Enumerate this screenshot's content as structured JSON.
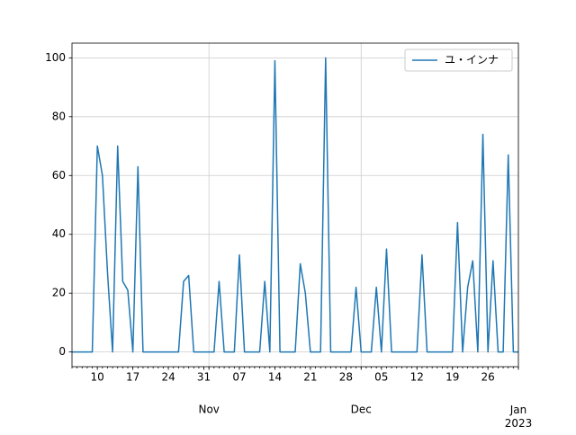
{
  "chart_data": {
    "type": "line",
    "x": [
      "10-05",
      "10-06",
      "10-07",
      "10-08",
      "10-09",
      "10-10",
      "10-11",
      "10-12",
      "10-13",
      "10-14",
      "10-15",
      "10-16",
      "10-17",
      "10-18",
      "10-19",
      "10-20",
      "10-21",
      "10-22",
      "10-23",
      "10-24",
      "10-25",
      "10-26",
      "10-27",
      "10-28",
      "10-29",
      "10-30",
      "10-31",
      "11-01",
      "11-02",
      "11-03",
      "11-04",
      "11-05",
      "11-06",
      "11-07",
      "11-08",
      "11-09",
      "11-10",
      "11-11",
      "11-12",
      "11-13",
      "11-14",
      "11-15",
      "11-16",
      "11-17",
      "11-18",
      "11-19",
      "11-20",
      "11-21",
      "11-22",
      "11-23",
      "11-24",
      "11-25",
      "11-26",
      "11-27",
      "11-28",
      "11-29",
      "11-30",
      "12-01",
      "12-02",
      "12-03",
      "12-04",
      "12-05",
      "12-06",
      "12-07",
      "12-08",
      "12-09",
      "12-10",
      "12-11",
      "12-12",
      "12-13",
      "12-14",
      "12-15",
      "12-16",
      "12-17",
      "12-18",
      "12-19",
      "12-20",
      "12-21",
      "12-22",
      "12-23",
      "12-24",
      "12-25",
      "12-26",
      "12-27",
      "12-28",
      "12-29",
      "12-30",
      "12-31",
      "01-01"
    ],
    "series": [
      {
        "name": "ユ・インナ",
        "color": "#1f77b4",
        "values": [
          0,
          0,
          0,
          0,
          0,
          70,
          60,
          27,
          0,
          70,
          24,
          21,
          0,
          63,
          0,
          0,
          0,
          0,
          0,
          0,
          0,
          0,
          24,
          26,
          0,
          0,
          0,
          0,
          0,
          24,
          0,
          0,
          0,
          33,
          0,
          0,
          0,
          0,
          24,
          0,
          99,
          0,
          0,
          0,
          0,
          30,
          20,
          0,
          0,
          0,
          100,
          0,
          0,
          0,
          0,
          0,
          22,
          0,
          0,
          0,
          22,
          0,
          35,
          0,
          0,
          0,
          0,
          0,
          0,
          33,
          0,
          0,
          0,
          0,
          0,
          0,
          44,
          0,
          22,
          31,
          0,
          74,
          0,
          31,
          0,
          0,
          67,
          0,
          0
        ]
      }
    ],
    "xlim": [
      "10-05",
      "01-01"
    ],
    "xticks": [
      {
        "value": "10-10",
        "label": "10"
      },
      {
        "value": "10-17",
        "label": "17"
      },
      {
        "value": "10-24",
        "label": "24"
      },
      {
        "value": "10-31",
        "label": "31"
      },
      {
        "value": "11-07",
        "label": "07"
      },
      {
        "value": "11-14",
        "label": "14"
      },
      {
        "value": "11-21",
        "label": "21"
      },
      {
        "value": "11-28",
        "label": "28"
      },
      {
        "value": "12-05",
        "label": "05"
      },
      {
        "value": "12-12",
        "label": "12"
      },
      {
        "value": "12-19",
        "label": "19"
      },
      {
        "value": "12-26",
        "label": "26"
      }
    ],
    "xticks_major": [
      {
        "value": "11-01",
        "label": "Nov"
      },
      {
        "value": "12-01",
        "label": "Dec"
      },
      {
        "value": "01-01",
        "label": "Jan\n2023"
      }
    ],
    "ylim": [
      -5,
      105
    ],
    "yticks": [
      0,
      20,
      40,
      60,
      80,
      100
    ],
    "grid": true,
    "legend": "upper right"
  }
}
